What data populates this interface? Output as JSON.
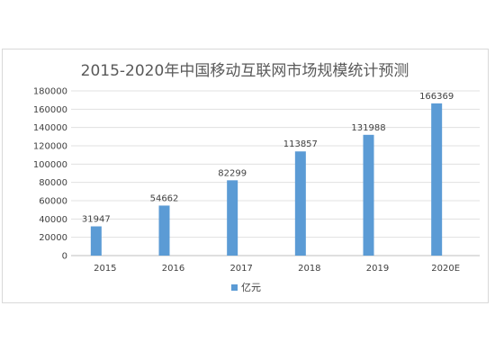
{
  "chart_data": {
    "type": "bar",
    "title": "2015-2020年中国移动互联网市场规模统计预测",
    "categories": [
      "2015",
      "2016",
      "2017",
      "2018",
      "2019",
      "2020E"
    ],
    "series": [
      {
        "name": "亿元",
        "values": [
          31947,
          54662,
          82299,
          113857,
          131988,
          166369
        ],
        "color": "#5b9bd5"
      }
    ],
    "data_labels": [
      "31947",
      "54662",
      "82299",
      "113857",
      "131988",
      "166369"
    ],
    "y_ticks": [
      0,
      20000,
      40000,
      60000,
      80000,
      100000,
      120000,
      140000,
      160000,
      180000
    ],
    "ylim": [
      0,
      180000
    ],
    "grid": true,
    "legend": "bottom",
    "xlabel": "",
    "ylabel": ""
  }
}
